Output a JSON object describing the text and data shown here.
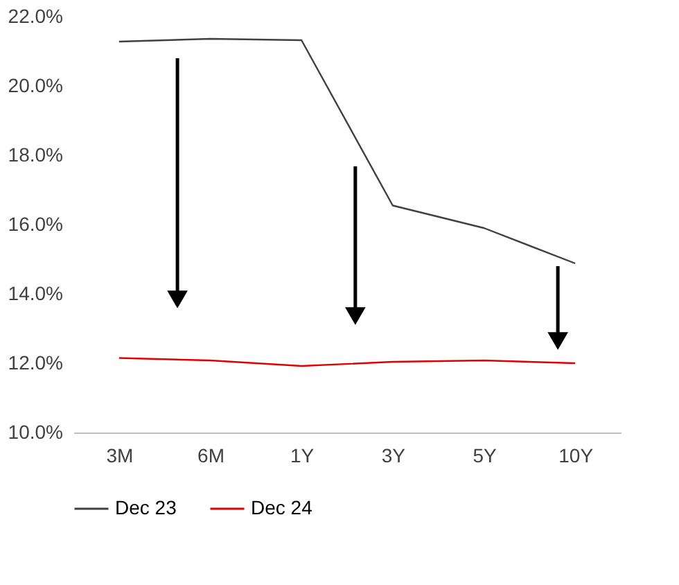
{
  "chart_data": {
    "type": "line",
    "categories": [
      "3M",
      "6M",
      "1Y",
      "3Y",
      "5Y",
      "10Y"
    ],
    "series": [
      {
        "name": "Dec 23",
        "color": "#404040",
        "values": [
          21.28,
          21.36,
          21.32,
          16.55,
          15.9,
          14.88
        ]
      },
      {
        "name": "Dec 24",
        "color": "#e00000",
        "values": [
          12.15,
          12.08,
          11.92,
          12.04,
          12.08,
          12.0
        ]
      }
    ],
    "ylim": [
      10,
      22
    ],
    "yticks": [
      {
        "value": 10,
        "label": "10.0%"
      },
      {
        "value": 12,
        "label": "12.0%"
      },
      {
        "value": 14,
        "label": "14.0%"
      },
      {
        "value": 16,
        "label": "16.0%"
      },
      {
        "value": 18,
        "label": "18.0%"
      },
      {
        "value": 20,
        "label": "20.0%"
      },
      {
        "value": 22,
        "label": "22.0%"
      }
    ],
    "grid": false,
    "legend": "bottom",
    "marker": "none",
    "line_style": "solid"
  }
}
